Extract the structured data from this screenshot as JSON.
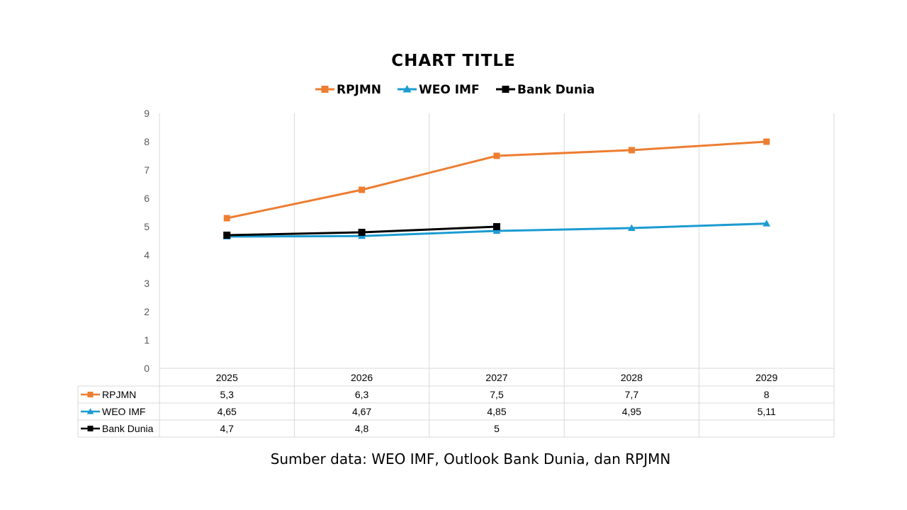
{
  "chart_data": {
    "type": "line",
    "title": "CHART TITLE",
    "categories": [
      "2025",
      "2026",
      "2027",
      "2028",
      "2029"
    ],
    "ylim": [
      0,
      9
    ],
    "yticks": [
      0,
      1,
      2,
      3,
      4,
      5,
      6,
      7,
      8,
      9
    ],
    "grid": true,
    "legend_position": "top",
    "series": [
      {
        "name": "RPJMN",
        "color": "#ED7D31",
        "marker": "square",
        "values": [
          5.3,
          6.3,
          7.5,
          7.7,
          8
        ],
        "labels": [
          "5,3",
          "6,3",
          "7,5",
          "7,7",
          "8"
        ]
      },
      {
        "name": "WEO IMF",
        "color": "#1B9BD1",
        "marker": "triangle",
        "values": [
          4.65,
          4.67,
          4.85,
          4.95,
          5.11
        ],
        "labels": [
          "4,65",
          "4,67",
          "4,85",
          "4,95",
          "5,11"
        ]
      },
      {
        "name": "Bank Dunia",
        "color": "#000000",
        "marker": "square",
        "values": [
          4.7,
          4.8,
          5,
          null,
          null
        ],
        "labels": [
          "4,7",
          "4,8",
          "5",
          "",
          ""
        ]
      }
    ]
  },
  "footer": {
    "source": "Sumber data: WEO IMF, Outlook Bank Dunia, dan RPJMN"
  }
}
